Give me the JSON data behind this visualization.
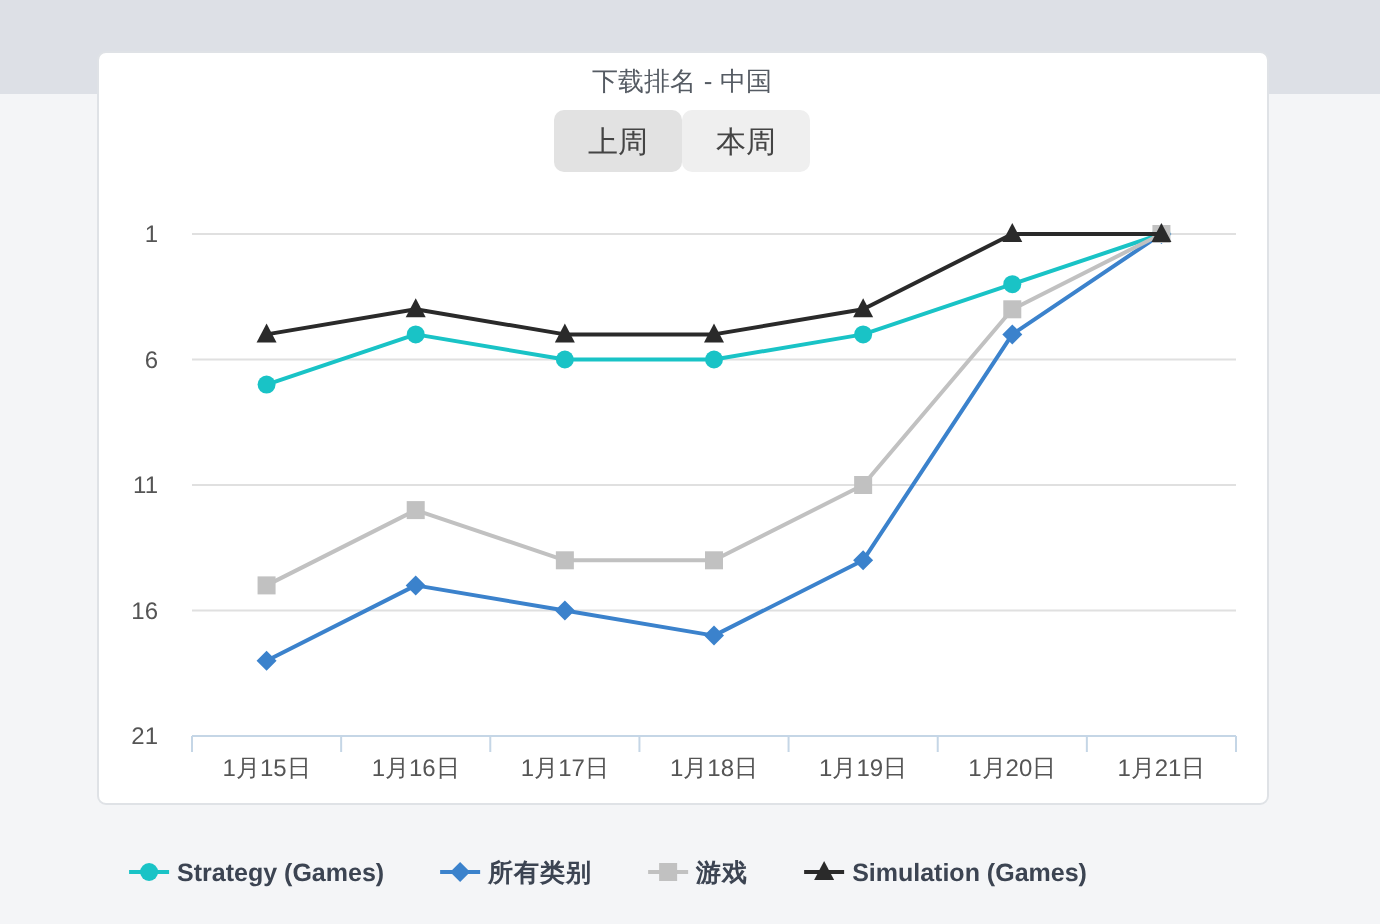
{
  "chart_data": {
    "type": "line",
    "title": "下载排名 - 中国",
    "annotations": [
      "上周",
      "本周"
    ],
    "categories": [
      "1月15日",
      "1月16日",
      "1月17日",
      "1月18日",
      "1月19日",
      "1月20日",
      "1月21日"
    ],
    "series": [
      {
        "name": "Strategy (Games)",
        "color": "#19c3c6",
        "marker": "circle",
        "values": [
          7,
          5,
          6,
          6,
          5,
          3,
          1
        ]
      },
      {
        "name": "所有类别",
        "color": "#3b82cc",
        "marker": "diamond",
        "values": [
          18,
          15,
          16,
          17,
          14,
          5,
          1
        ]
      },
      {
        "name": "游戏",
        "color": "#c1c1c1",
        "marker": "square",
        "values": [
          15,
          12,
          14,
          14,
          11,
          4,
          1
        ]
      },
      {
        "name": "Simulation (Games)",
        "color": "#2a2a2a",
        "marker": "triangle",
        "values": [
          5,
          4,
          5,
          5,
          4,
          1,
          1
        ]
      }
    ],
    "ylim": [
      21,
      1
    ],
    "yticks": [
      1,
      6,
      11,
      16,
      21
    ],
    "grid": "y",
    "legend": "bottom",
    "line_style": "solid"
  }
}
